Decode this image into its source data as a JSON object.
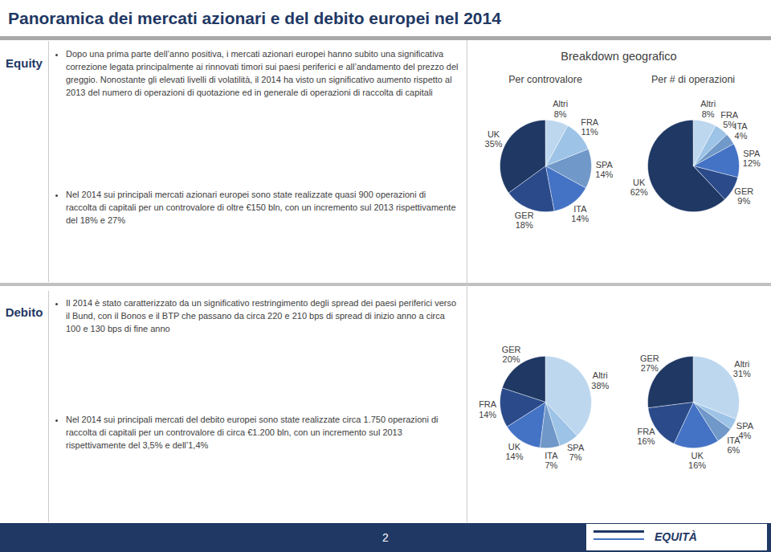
{
  "title": "Panoramica dei mercati azionari e del debito europei nel 2014",
  "annotations": [
    "Equity",
    "Dopo una prima parte dell’anno positiva, i mercati azionari europei hanno subito una significativa correzione legata principalmente ai rinnovati timori sui paesi periferici e all’andamento del prezzo del greggio. Nonostante gli elevati livelli di volatilità, il 2014 ha visto un significativo aumento rispetto al 2013 del numero di operazioni di quotazione ed in generale di operazioni di raccolta di capitali",
    "Nel 2014 sui principali mercati azionari europei sono state realizzate quasi 900 operazioni di raccolta di capitali per un controvalore di oltre €150 bln, con un incremento sul 2013 rispettivamente del 18% e 27%",
    "Breakdown geografico",
    "Debito",
    "Il 2014 è stato caratterizzato da un significativo restringimento degli spread dei paesi periferici verso il Bund, con il Bonos e il BTP che passano da circa 220 e 210 bps di spread di inizio anno a circa 100 e 130 bps di fine anno",
    "Nel 2014 sui principali mercati del debito europei sono state realizzate circa 1.750 operazioni di raccolta di capitali per un controvalore di circa €1.200 bln, con un incremento sul 2013 rispettivamente del 3,5% e dell’1,4%",
    "2",
    "EQUITÀ"
  ],
  "chart_data": [
    {
      "type": "pie",
      "title": "Per controvalore",
      "categories": [
        "UK",
        "GER",
        "ITA",
        "SPA",
        "FRA",
        "Altri"
      ],
      "values": [
        35,
        18,
        14,
        14,
        11,
        8
      ],
      "value_labels": [
        "35%",
        "18%",
        "14%",
        "14%",
        "11%",
        "8%"
      ],
      "colors": [
        "#1F3864",
        "#2A4A8A",
        "#4472C4",
        "#7098C8",
        "#9DC3E6",
        "#BDD7EE"
      ],
      "data_labels": true
    },
    {
      "type": "pie",
      "title": "Per # di operazioni",
      "categories": [
        "UK",
        "GER",
        "SPA",
        "ITA",
        "FRA",
        "Altri"
      ],
      "values": [
        62,
        9,
        12,
        4,
        5,
        8
      ],
      "value_labels": [
        "62%",
        "9%",
        "12%",
        "4%",
        "5%",
        "8%"
      ],
      "colors": [
        "#1F3864",
        "#2A4A8A",
        "#4472C4",
        "#7098C8",
        "#9DC3E6",
        "#BDD7EE"
      ],
      "data_labels": true
    },
    {
      "type": "pie",
      "categories": [
        "GER",
        "FRA",
        "UK",
        "ITA",
        "SPA",
        "Altri"
      ],
      "values": [
        20,
        14,
        14,
        7,
        7,
        38
      ],
      "value_labels": [
        "20%",
        "14%",
        "14%",
        "7%",
        "7%",
        "38%"
      ],
      "colors": [
        "#1F3864",
        "#2A4A8A",
        "#4472C4",
        "#7098C8",
        "#9DC3E6",
        "#BDD7EE"
      ],
      "data_labels": true
    },
    {
      "type": "pie",
      "categories": [
        "GER",
        "FRA",
        "UK",
        "ITA",
        "SPA",
        "Altri"
      ],
      "values": [
        27,
        16,
        16,
        6,
        4,
        31
      ],
      "value_labels": [
        "27%",
        "16%",
        "16%",
        "6%",
        "4%",
        "31%"
      ],
      "colors": [
        "#1F3864",
        "#2A4A8A",
        "#4472C4",
        "#7098C8",
        "#9DC3E6",
        "#BDD7EE"
      ],
      "data_labels": true
    }
  ]
}
